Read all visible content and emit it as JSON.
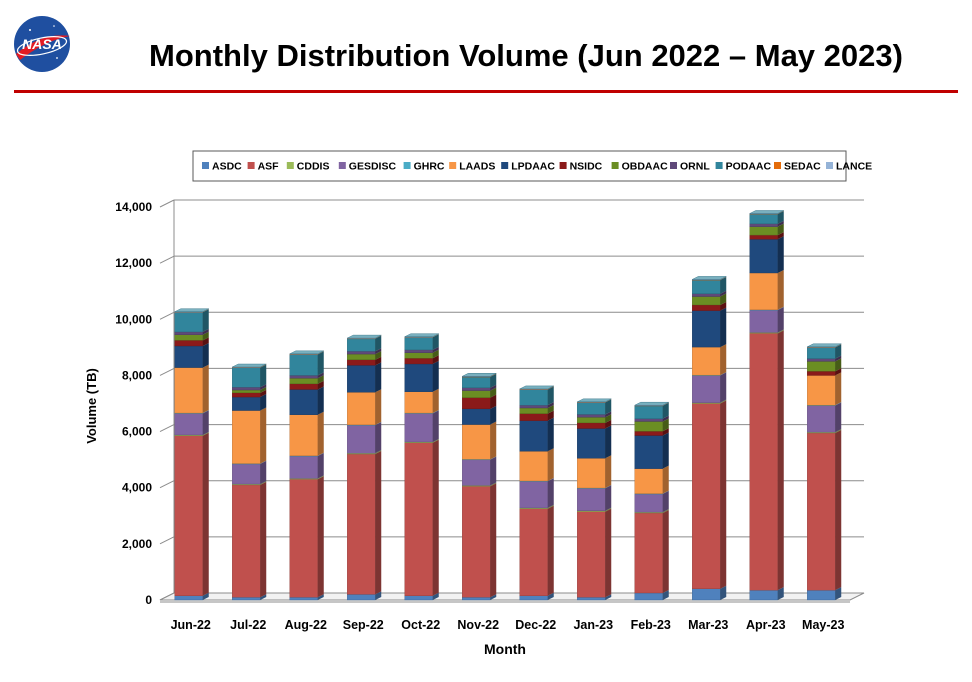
{
  "header": {
    "title": "Monthly Distribution Volume (Jun 2022 – May 2023)",
    "logo_text": "NASA"
  },
  "chart_data": {
    "type": "bar",
    "stacked": true,
    "three_d": true,
    "title": "",
    "xlabel": "Month",
    "ylabel": "Volume (TB)",
    "ylim": [
      0,
      14000
    ],
    "y_ticks": [
      0,
      2000,
      4000,
      6000,
      8000,
      10000,
      12000,
      14000
    ],
    "y_tick_labels": [
      "0",
      "2,000",
      "4,000",
      "6,000",
      "8,000",
      "10,000",
      "12,000",
      "14,000"
    ],
    "grid": true,
    "legend_position": "top",
    "categories": [
      "Jun-22",
      "Jul-22",
      "Aug-22",
      "Sep-22",
      "Oct-22",
      "Nov-22",
      "Dec-22",
      "Jan-23",
      "Feb-23",
      "Mar-23",
      "Apr-23",
      "May-23"
    ],
    "series": [
      {
        "name": "ASDC",
        "color": "#4f81bd",
        "values": [
          150,
          100,
          100,
          200,
          150,
          100,
          150,
          100,
          250,
          400,
          350,
          350
        ]
      },
      {
        "name": "ASF",
        "color": "#c0504d",
        "values": [
          5700,
          4000,
          4200,
          5000,
          5450,
          3950,
          3100,
          3050,
          2850,
          6600,
          9150,
          5600
        ]
      },
      {
        "name": "CDDIS",
        "color": "#9bbb59",
        "values": [
          30,
          30,
          30,
          30,
          30,
          30,
          30,
          30,
          30,
          30,
          30,
          30
        ]
      },
      {
        "name": "GESDISC",
        "color": "#8064a2",
        "values": [
          770,
          720,
          800,
          1000,
          1020,
          920,
          950,
          800,
          650,
          970,
          800,
          950
        ]
      },
      {
        "name": "GHRC",
        "color": "#4bacc6",
        "values": [
          10,
          10,
          10,
          10,
          10,
          10,
          10,
          10,
          10,
          10,
          10,
          10
        ]
      },
      {
        "name": "LAADS",
        "color": "#f79646",
        "values": [
          1620,
          1890,
          1460,
          1160,
          760,
          1240,
          1060,
          1060,
          890,
          1000,
          1310,
          1060
        ]
      },
      {
        "name": "LPDAAC",
        "color": "#1f497d",
        "values": [
          770,
          480,
          900,
          960,
          990,
          560,
          1090,
          1060,
          1180,
          1300,
          1200,
          0
        ]
      },
      {
        "name": "NSIDC",
        "color": "#8b1a1a",
        "values": [
          200,
          150,
          200,
          200,
          200,
          400,
          250,
          200,
          150,
          200,
          150,
          150
        ]
      },
      {
        "name": "OBDAAC",
        "color": "#6b8e23",
        "values": [
          200,
          100,
          200,
          200,
          200,
          250,
          200,
          200,
          350,
          300,
          300,
          350
        ]
      },
      {
        "name": "ORNL",
        "color": "#5f497a",
        "values": [
          100,
          100,
          100,
          100,
          100,
          100,
          100,
          100,
          100,
          100,
          100,
          100
        ]
      },
      {
        "name": "PODAAC",
        "color": "#31859c",
        "values": [
          700,
          700,
          750,
          450,
          450,
          390,
          560,
          430,
          460,
          490,
          350,
          400
        ]
      },
      {
        "name": "SEDAC",
        "color": "#e46c0a",
        "values": [
          10,
          10,
          10,
          10,
          10,
          10,
          10,
          10,
          10,
          10,
          10,
          10
        ]
      },
      {
        "name": "LANCE",
        "color": "#95b3d7",
        "values": [
          10,
          10,
          10,
          10,
          10,
          10,
          10,
          10,
          10,
          10,
          10,
          10
        ]
      }
    ]
  }
}
